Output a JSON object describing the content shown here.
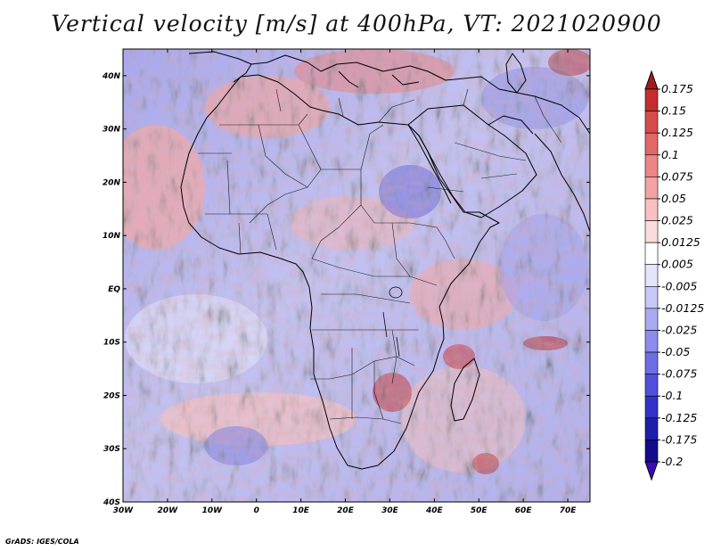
{
  "title": "Vertical velocity [m/s] at 400hPa, VT: 2021020900",
  "credit": "GrADS: IGES/COLA",
  "map": {
    "lon_range": [
      -30,
      75
    ],
    "lat_range": [
      -40,
      45
    ],
    "lon_ticks": [
      {
        "lon": -30,
        "label": "30W"
      },
      {
        "lon": -20,
        "label": "20W"
      },
      {
        "lon": -10,
        "label": "10W"
      },
      {
        "lon": 0,
        "label": "0"
      },
      {
        "lon": 10,
        "label": "10E"
      },
      {
        "lon": 20,
        "label": "20E"
      },
      {
        "lon": 30,
        "label": "30E"
      },
      {
        "lon": 40,
        "label": "40E"
      },
      {
        "lon": 50,
        "label": "50E"
      },
      {
        "lon": 60,
        "label": "60E"
      },
      {
        "lon": 70,
        "label": "70E"
      }
    ],
    "lat_ticks": [
      {
        "lat": 40,
        "label": "40N"
      },
      {
        "lat": 30,
        "label": "30N"
      },
      {
        "lat": 20,
        "label": "20N"
      },
      {
        "lat": 10,
        "label": "10N"
      },
      {
        "lat": 0,
        "label": "EQ"
      },
      {
        "lat": -10,
        "label": "10S"
      },
      {
        "lat": -20,
        "label": "20S"
      },
      {
        "lat": -30,
        "label": "30S"
      },
      {
        "lat": -40,
        "label": "40S"
      }
    ]
  },
  "colorbar": {
    "levels": [
      "0.175",
      "0.15",
      "0.125",
      "0.1",
      "0.075",
      "0.05",
      "0.025",
      "0.0125",
      "0.005",
      "-0.005",
      "-0.0125",
      "-0.025",
      "-0.05",
      "-0.075",
      "-0.1",
      "-0.125",
      "-0.175",
      "-0.2"
    ],
    "colors": [
      "#a01c1c",
      "#c42e2e",
      "#d64c4c",
      "#e26868",
      "#ec8585",
      "#f3a3a3",
      "#f8c0c0",
      "#fbdcdc",
      "#ffffff",
      "#e4e4fb",
      "#c8c8f8",
      "#aaaaf3",
      "#8c8cec",
      "#6e6ee4",
      "#5050dc",
      "#3232c8",
      "#1e1ea8",
      "#120c8a",
      "#3a0cb4"
    ]
  }
}
